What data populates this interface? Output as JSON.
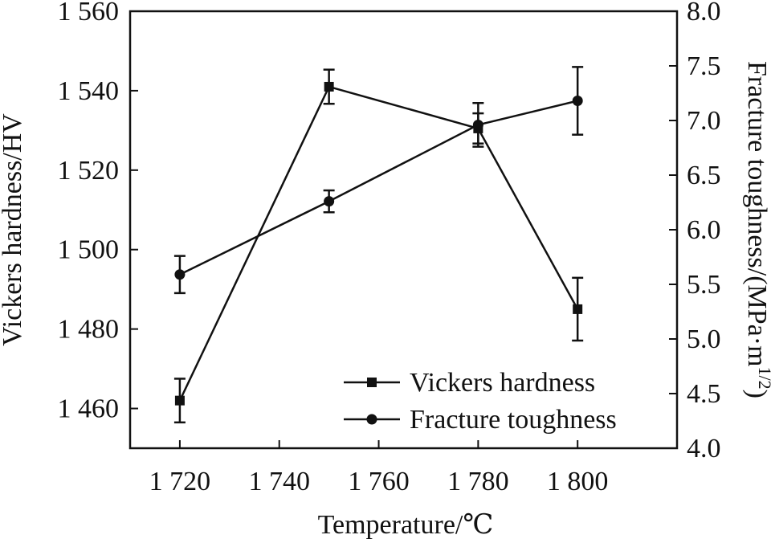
{
  "chart_data": {
    "type": "line",
    "xlabel": "Temperature/℃",
    "ylabel_left": "Vickers hardness/HV",
    "ylabel_right_main": "Fracture toughness/(MPa·m",
    "ylabel_right_sup": "1/2",
    "ylabel_right_close": ")",
    "x_ticks": [
      1720,
      1740,
      1760,
      1780,
      1800
    ],
    "x_tick_labels": [
      "1 720",
      "1 740",
      "1 760",
      "1 780",
      "1 800"
    ],
    "xlim": [
      1710,
      1820
    ],
    "y_left_ticks": [
      1460,
      1480,
      1500,
      1520,
      1540,
      1560
    ],
    "y_left_tick_labels": [
      "1 460",
      "1 480",
      "1 500",
      "1 520",
      "1 540",
      "1 560"
    ],
    "ylim_left": [
      1450,
      1560
    ],
    "y_right_ticks": [
      4.0,
      4.5,
      5.0,
      5.5,
      6.0,
      6.5,
      7.0,
      7.5,
      8.0
    ],
    "y_right_tick_labels": [
      "4.0",
      "4.5",
      "5.0",
      "5.5",
      "6.0",
      "6.5",
      "7.0",
      "7.5",
      "8.0"
    ],
    "ylim_right": [
      4.0,
      8.0
    ],
    "legend_position": "bottom-right",
    "series": [
      {
        "name": "Vickers hardness",
        "axis": "left",
        "marker": "square",
        "x": [
          1720,
          1750,
          1780,
          1800
        ],
        "y": [
          1462,
          1541,
          1530.5,
          1485
        ],
        "err": [
          5.5,
          4.3,
          3.8,
          7.9
        ]
      },
      {
        "name": "Fracture toughness",
        "axis": "right",
        "marker": "circle",
        "x": [
          1720,
          1750,
          1780,
          1800
        ],
        "y": [
          5.59,
          6.26,
          6.96,
          7.18
        ],
        "err": [
          0.17,
          0.1,
          0.2,
          0.31
        ]
      }
    ]
  }
}
